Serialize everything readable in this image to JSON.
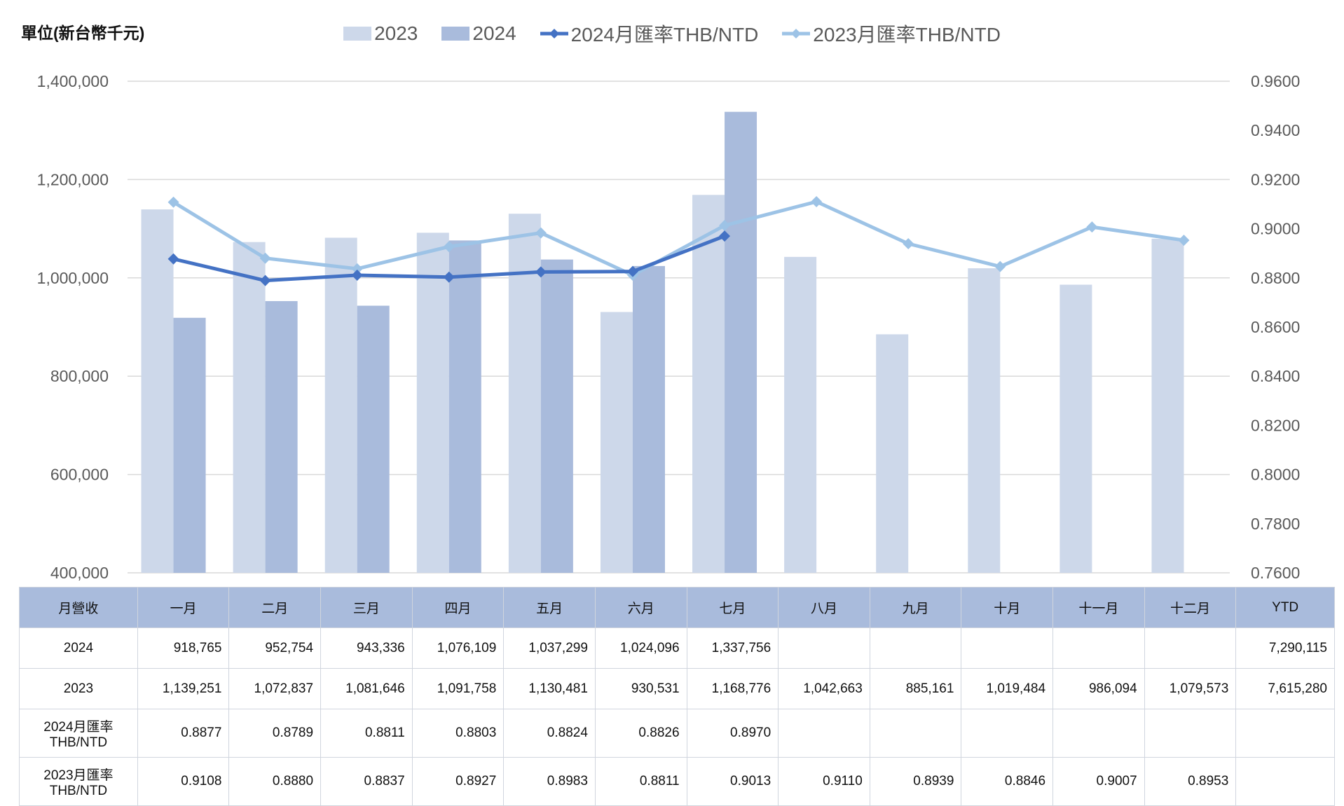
{
  "unit_label": "單位(新台幣千元)",
  "colors": {
    "bar_2023": "#cdd8ea",
    "bar_2024": "#a9bbdc",
    "line_2024": "#4472c4",
    "line_2023": "#9dc3e6",
    "grid": "#d9d9d9",
    "table_header": "#a9bbdc"
  },
  "chart_data": {
    "type": "bar",
    "categories": [
      "一月",
      "二月",
      "三月",
      "四月",
      "五月",
      "六月",
      "七月",
      "八月",
      "九月",
      "十月",
      "十一月",
      "十二月"
    ],
    "series": [
      {
        "name": "2023",
        "type": "bar",
        "axis": "left",
        "values": [
          1139251,
          1072837,
          1081646,
          1091758,
          1130481,
          930531,
          1168776,
          1042663,
          885161,
          1019484,
          986094,
          1079573
        ]
      },
      {
        "name": "2024",
        "type": "bar",
        "axis": "left",
        "values": [
          918765,
          952754,
          943336,
          1076109,
          1037299,
          1024096,
          1337756,
          null,
          null,
          null,
          null,
          null
        ]
      },
      {
        "name": "2024月匯率THB/NTD",
        "type": "line",
        "axis": "right",
        "values": [
          0.8877,
          0.8789,
          0.8811,
          0.8803,
          0.8824,
          0.8826,
          0.897,
          null,
          null,
          null,
          null,
          null
        ]
      },
      {
        "name": "2023月匯率THB/NTD",
        "type": "line",
        "axis": "right",
        "values": [
          0.9108,
          0.888,
          0.8837,
          0.8927,
          0.8983,
          0.8811,
          0.9013,
          0.911,
          0.8939,
          0.8846,
          0.9007,
          0.8953
        ]
      }
    ],
    "ylim_left": [
      400000,
      1400000
    ],
    "ylim_right": [
      0.76,
      0.96
    ],
    "yticks_left": [
      "400,000",
      "600,000",
      "800,000",
      "1,000,000",
      "1,200,000",
      "1,400,000"
    ],
    "yticks_right": [
      "0.7600",
      "0.7800",
      "0.8000",
      "0.8200",
      "0.8400",
      "0.8600",
      "0.8800",
      "0.9000",
      "0.9200",
      "0.9400",
      "0.9600"
    ],
    "grid": true,
    "legend_position": "top"
  },
  "legend": [
    {
      "label": "2023",
      "kind": "bar",
      "color": "#cdd8ea"
    },
    {
      "label": "2024",
      "kind": "bar",
      "color": "#a9bbdc"
    },
    {
      "label": "2024月匯率THB/NTD",
      "kind": "line",
      "color": "#4472c4"
    },
    {
      "label": "2023月匯率THB/NTD",
      "kind": "line",
      "color": "#9dc3e6"
    }
  ],
  "table": {
    "header": [
      "月營收",
      "一月",
      "二月",
      "三月",
      "四月",
      "五月",
      "六月",
      "七月",
      "八月",
      "九月",
      "十月",
      "十一月",
      "十二月",
      "YTD"
    ],
    "rows": [
      {
        "label": "2024",
        "cells": [
          "918,765",
          "952,754",
          "943,336",
          "1,076,109",
          "1,037,299",
          "1,024,096",
          "1,337,756",
          "",
          "",
          "",
          "",
          "",
          "7,290,115"
        ]
      },
      {
        "label": "2023",
        "cells": [
          "1,139,251",
          "1,072,837",
          "1,081,646",
          "1,091,758",
          "1,130,481",
          "930,531",
          "1,168,776",
          "1,042,663",
          "885,161",
          "1,019,484",
          "986,094",
          "1,079,573",
          "7,615,280"
        ]
      },
      {
        "label_line1": "2024月匯率",
        "label_line2": "THB/NTD",
        "cells": [
          "0.8877",
          "0.8789",
          "0.8811",
          "0.8803",
          "0.8824",
          "0.8826",
          "0.8970",
          "",
          "",
          "",
          "",
          "",
          ""
        ]
      },
      {
        "label_line1": "2023月匯率",
        "label_line2": "THB/NTD",
        "cells": [
          "0.9108",
          "0.8880",
          "0.8837",
          "0.8927",
          "0.8983",
          "0.8811",
          "0.9013",
          "0.9110",
          "0.8939",
          "0.8846",
          "0.9007",
          "0.8953",
          ""
        ]
      }
    ]
  }
}
